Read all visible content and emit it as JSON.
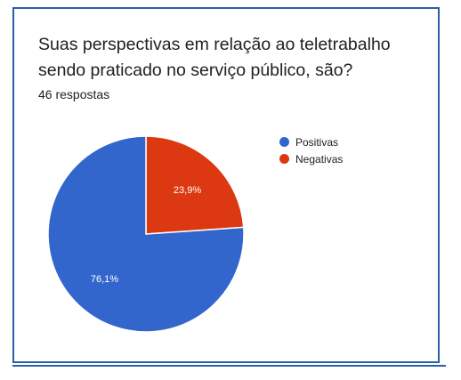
{
  "title": "Suas perspectivas em relação ao teletrabalho sendo praticado no serviço público, são?",
  "subtitle": "46 respostas",
  "chart_data": {
    "type": "pie",
    "title": "Suas perspectivas em relação ao teletrabalho sendo praticado no serviço público, são?",
    "categories": [
      "Positivas",
      "Negativas"
    ],
    "values": [
      76.1,
      23.9
    ],
    "labels": [
      "76,1%",
      "23,9%"
    ],
    "colors": [
      "#3366cc",
      "#dc3912"
    ],
    "legend_position": "right"
  },
  "legend": [
    {
      "label": "Positivas",
      "color": "#3366cc"
    },
    {
      "label": "Negativas",
      "color": "#dc3912"
    }
  ]
}
